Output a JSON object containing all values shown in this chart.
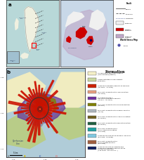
{
  "figure_bg": "#ffffff",
  "panel_a_label": "a",
  "panel_b_label": "b",
  "top_left_bg": "#b8d8d8",
  "top_right_bg": "#c8d8e8",
  "top_right_legend_bg": "#e8e8e8",
  "map_bg_color": "#c8e0e8",
  "italy_color": "#f0f0e0",
  "vesuvio_region_color": "#d4a0a0",
  "fault_legend_title": "Fault",
  "world_stress_title": "World Stress Map",
  "formation_title": "Formation",
  "formation_entries": [
    {
      "label": "Volcanoclastic and Clastic Deposit\n(Late Holocene/Present)",
      "color": "#f5f0c8"
    },
    {
      "label": "Undifferentiated Volcanic Deposit\n(Unknown)",
      "color": "#c8d8a0"
    },
    {
      "label": "Lavas and Pyroclastic deposits of Vesuvius\n(AD 1631 - AD 1944)",
      "color": "#cc2200"
    },
    {
      "label": "Pyroclastic deposits of the 1631 eruption\n(AD 1631)",
      "color": "#e8a080"
    },
    {
      "label": "Villa Inglese lavas +\nSan Pietro pyroclastic deposits\n(AD 871 - AD 1631)",
      "color": "#7030a0"
    },
    {
      "label": "Pyroclastic deposits of the Pollena eruption\n(AD 472)",
      "color": "#808000"
    },
    {
      "label": "Pyroclastic deposits of the Pompei eruption\n(AD 79)",
      "color": "#b0b8c0"
    },
    {
      "label": "Pyroclastic deposits of the Avellino eruption\n(4.3 ka BP)",
      "color": "#706020"
    },
    {
      "label": "Pyroclastic deposits of the Mercato eruption\n(8.9 ka BP)",
      "color": "#206040"
    },
    {
      "label": "Pyroclastic deposits of the\nPomici Verdoline eruption\n(10 ka BP)",
      "color": "#20a0a0"
    },
    {
      "label": "Lavas and lavinite of the Vallone S. Severino\n(22 ka BP - 19 ka BP)",
      "color": "#80c8e0"
    },
    {
      "label": "Pyroclastic deposits of the\nPomici di Base eruption\n(25 ka BP)",
      "color": "#a06040"
    },
    {
      "label": "Lavas and lavinite of Cigarette and\nLavas and Pyroclastic deposits of the\nSomma old eruptions\n(>25 ka BP - 25 ka to 39...)",
      "color": "#102060"
    }
  ],
  "bottom_legend_items": [
    {
      "label": "S",
      "color": "#808080"
    },
    {
      "label": "B",
      "color": "#d4b800"
    },
    {
      "label": "C",
      "color": "#4060b0"
    },
    {
      "label": "D",
      "color": "#e08080"
    }
  ],
  "map_colors": {
    "red_lava": "#cc1100",
    "purple": "#6030a0",
    "olive": "#707800",
    "gray_blue": "#9098a8",
    "dark_olive": "#605818",
    "dark_green": "#1a5030",
    "teal": "#189898",
    "light_blue": "#70b8d0",
    "tan": "#c8a070",
    "dark_navy": "#101830",
    "light_yellow": "#f0ecc0",
    "light_green": "#b8cc88"
  }
}
